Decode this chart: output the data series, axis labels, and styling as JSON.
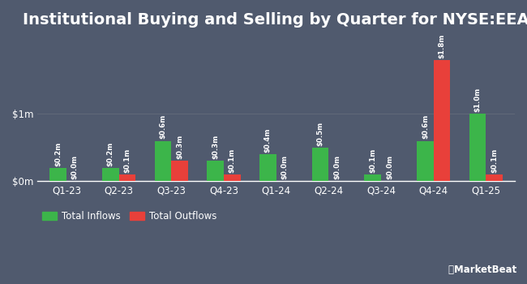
{
  "title": "Institutional Buying and Selling by Quarter for NYSE:EEA",
  "categories": [
    "Q1-23",
    "Q2-23",
    "Q3-23",
    "Q4-23",
    "Q1-24",
    "Q2-24",
    "Q3-24",
    "Q4-24",
    "Q1-25"
  ],
  "inflows": [
    0.2,
    0.2,
    0.6,
    0.3,
    0.4,
    0.5,
    0.1,
    0.6,
    1.0
  ],
  "outflows": [
    0.0,
    0.1,
    0.3,
    0.1,
    0.0,
    0.0,
    0.0,
    1.8,
    0.1
  ],
  "inflow_labels": [
    "$0.2m",
    "$0.2m",
    "$0.6m",
    "$0.3m",
    "$0.4m",
    "$0.5m",
    "$0.1m",
    "$0.6m",
    "$1.0m"
  ],
  "outflow_labels": [
    "$0.0m",
    "$0.1m",
    "$0.3m",
    "$0.1m",
    "$0.0m",
    "$0.0m",
    "$0.0m",
    "$1.8m",
    "$0.1m"
  ],
  "inflow_color": "#3cb54a",
  "outflow_color": "#e8403a",
  "background_color": "#505a6e",
  "text_color": "#ffffff",
  "grid_color": "#606878",
  "yticks": [
    0,
    1
  ],
  "ytick_labels": [
    "$0m",
    "$1m"
  ],
  "ylim": [
    0,
    2.1
  ],
  "legend_inflow": "Total Inflows",
  "legend_outflow": "Total Outflows",
  "bar_width": 0.32,
  "title_fontsize": 14,
  "label_fontsize": 6.2,
  "tick_fontsize": 8.5,
  "legend_fontsize": 8.5
}
